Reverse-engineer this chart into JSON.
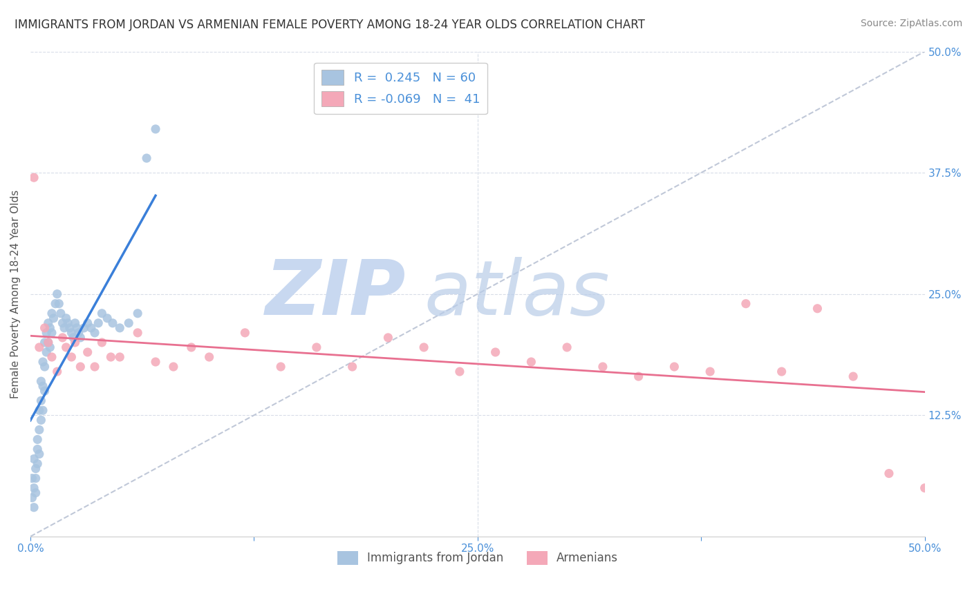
{
  "title": "IMMIGRANTS FROM JORDAN VS ARMENIAN FEMALE POVERTY AMONG 18-24 YEAR OLDS CORRELATION CHART",
  "source": "Source: ZipAtlas.com",
  "ylabel": "Female Poverty Among 18-24 Year Olds",
  "xlim": [
    0.0,
    0.5
  ],
  "ylim": [
    0.0,
    0.5
  ],
  "xticks": [
    0.0,
    0.125,
    0.25,
    0.375,
    0.5
  ],
  "xticklabels": [
    "0.0%",
    "",
    "25.0%",
    "",
    "50.0%"
  ],
  "yticks_right": [
    0.0,
    0.125,
    0.25,
    0.375,
    0.5
  ],
  "yticklabels_right": [
    "",
    "12.5%",
    "25.0%",
    "37.5%",
    "50.0%"
  ],
  "jordan_R": 0.245,
  "jordan_N": 60,
  "armenian_R": -0.069,
  "armenian_N": 41,
  "jordan_color": "#a8c4e0",
  "armenian_color": "#f4a8b8",
  "jordan_line_color": "#3a7fd9",
  "armenian_line_color": "#e87090",
  "diagonal_color": "#c0c8d8",
  "watermark_zip_color": "#c8d4e8",
  "watermark_atlas_color": "#c0d0e8",
  "jordan_x": [
    0.001,
    0.001,
    0.002,
    0.002,
    0.002,
    0.003,
    0.003,
    0.003,
    0.004,
    0.004,
    0.004,
    0.005,
    0.005,
    0.005,
    0.006,
    0.006,
    0.006,
    0.007,
    0.007,
    0.007,
    0.008,
    0.008,
    0.008,
    0.009,
    0.009,
    0.01,
    0.01,
    0.011,
    0.011,
    0.012,
    0.012,
    0.013,
    0.014,
    0.015,
    0.016,
    0.017,
    0.018,
    0.019,
    0.02,
    0.021,
    0.022,
    0.023,
    0.024,
    0.025,
    0.026,
    0.027,
    0.028,
    0.03,
    0.032,
    0.034,
    0.036,
    0.038,
    0.04,
    0.043,
    0.046,
    0.05,
    0.055,
    0.06,
    0.065,
    0.07
  ],
  "jordan_y": [
    0.06,
    0.04,
    0.08,
    0.05,
    0.03,
    0.07,
    0.06,
    0.045,
    0.09,
    0.1,
    0.075,
    0.13,
    0.11,
    0.085,
    0.16,
    0.14,
    0.12,
    0.18,
    0.155,
    0.13,
    0.2,
    0.175,
    0.15,
    0.21,
    0.19,
    0.22,
    0.2,
    0.215,
    0.195,
    0.23,
    0.21,
    0.225,
    0.24,
    0.25,
    0.24,
    0.23,
    0.22,
    0.215,
    0.225,
    0.22,
    0.215,
    0.21,
    0.205,
    0.22,
    0.215,
    0.21,
    0.205,
    0.215,
    0.22,
    0.215,
    0.21,
    0.22,
    0.23,
    0.225,
    0.22,
    0.215,
    0.22,
    0.23,
    0.39,
    0.42
  ],
  "armenian_x": [
    0.002,
    0.005,
    0.008,
    0.01,
    0.012,
    0.015,
    0.018,
    0.02,
    0.023,
    0.025,
    0.028,
    0.032,
    0.036,
    0.04,
    0.045,
    0.05,
    0.06,
    0.07,
    0.08,
    0.09,
    0.1,
    0.12,
    0.14,
    0.16,
    0.18,
    0.2,
    0.22,
    0.24,
    0.26,
    0.28,
    0.3,
    0.32,
    0.34,
    0.36,
    0.38,
    0.4,
    0.42,
    0.44,
    0.46,
    0.48,
    0.5
  ],
  "armenian_y": [
    0.37,
    0.195,
    0.215,
    0.2,
    0.185,
    0.17,
    0.205,
    0.195,
    0.185,
    0.2,
    0.175,
    0.19,
    0.175,
    0.2,
    0.185,
    0.185,
    0.21,
    0.18,
    0.175,
    0.195,
    0.185,
    0.21,
    0.175,
    0.195,
    0.175,
    0.205,
    0.195,
    0.17,
    0.19,
    0.18,
    0.195,
    0.175,
    0.165,
    0.175,
    0.17,
    0.24,
    0.17,
    0.235,
    0.165,
    0.065,
    0.05
  ]
}
